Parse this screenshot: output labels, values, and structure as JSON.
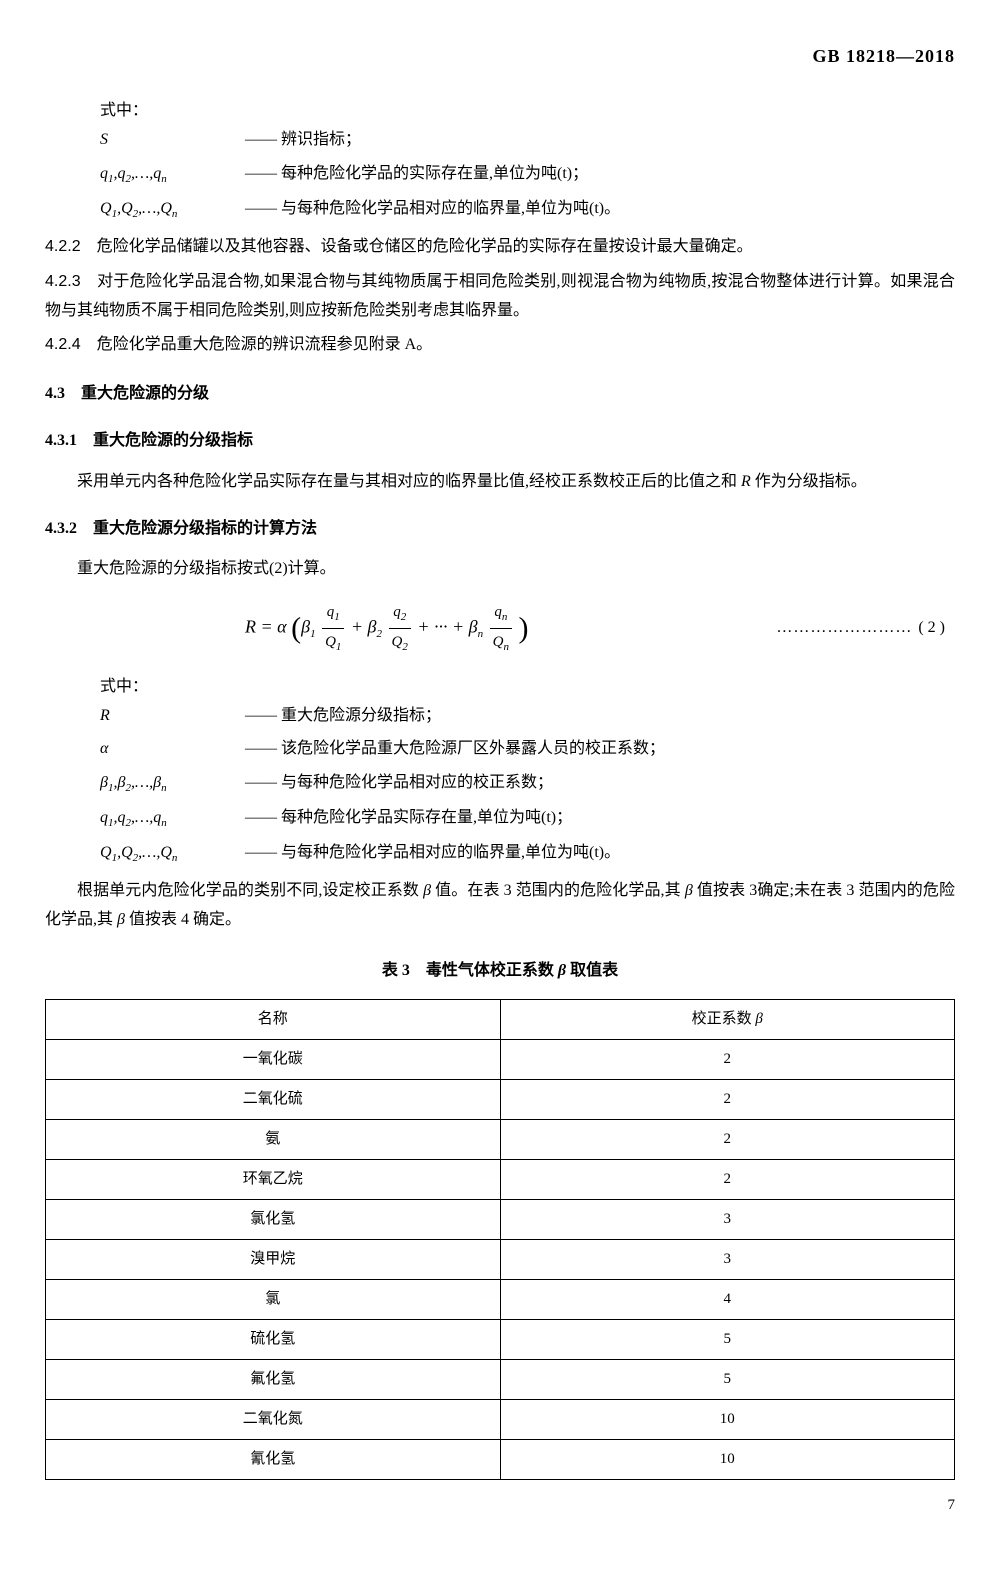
{
  "header": {
    "standard_id": "GB 18218—2018"
  },
  "defs1_intro": "式中：",
  "defs1": [
    {
      "sym": "S",
      "text": "辨识指标；"
    },
    {
      "sym": "q₁,q₂,…,qₙ",
      "text": "每种危险化学品的实际存在量,单位为吨(t)；"
    },
    {
      "sym": "Q₁,Q₂,…,Qₙ",
      "text": "与每种危险化学品相对应的临界量,单位为吨(t)。"
    }
  ],
  "clauses": {
    "c422": {
      "num": "4.2.2",
      "text": "危险化学品储罐以及其他容器、设备或仓储区的危险化学品的实际存在量按设计最大量确定。"
    },
    "c423": {
      "num": "4.2.3",
      "text": "对于危险化学品混合物,如果混合物与其纯物质属于相同危险类别,则视混合物为纯物质,按混合物整体进行计算。如果混合物与其纯物质不属于相同危险类别,则应按新危险类别考虑其临界量。"
    },
    "c424": {
      "num": "4.2.4",
      "text": "危险化学品重大危险源的辨识流程参见附录 A。"
    }
  },
  "sec43": {
    "num": "4.3",
    "title": "重大危险源的分级"
  },
  "sec431": {
    "num": "4.3.1",
    "title": "重大危险源的分级指标",
    "para": "采用单元内各种危险化学品实际存在量与其相对应的临界量比值,经校正系数校正后的比值之和 R 作为分级指标。"
  },
  "sec432": {
    "num": "4.3.2",
    "title": "重大危险源分级指标的计算方法",
    "para": "重大危险源的分级指标按式(2)计算。"
  },
  "formula": {
    "lhs": "R = α",
    "terms_intro": "β",
    "eq_num": "( 2 )"
  },
  "defs2_intro": "式中：",
  "defs2": [
    {
      "sym": "R",
      "text": "重大危险源分级指标；"
    },
    {
      "sym": "α",
      "text": "该危险化学品重大危险源厂区外暴露人员的校正系数；"
    },
    {
      "sym": "β₁,β₂,…,βₙ",
      "text": "与每种危险化学品相对应的校正系数；"
    },
    {
      "sym": "q₁,q₂,…,qₙ",
      "text": "每种危险化学品实际存在量,单位为吨(t)；"
    },
    {
      "sym": "Q₁,Q₂,…,Qₙ",
      "text": "与每种危险化学品相对应的临界量,单位为吨(t)。"
    }
  ],
  "para_after": "根据单元内危险化学品的类别不同,设定校正系数 β 值。在表 3 范围内的危险化学品,其 β 值按表 3确定;未在表 3 范围内的危险化学品,其 β 值按表 4 确定。",
  "table3": {
    "title": "表 3　毒性气体校正系数 β 取值表",
    "columns": [
      "名称",
      "校正系数 β"
    ],
    "rows": [
      [
        "一氧化碳",
        "2"
      ],
      [
        "二氧化硫",
        "2"
      ],
      [
        "氨",
        "2"
      ],
      [
        "环氧乙烷",
        "2"
      ],
      [
        "氯化氢",
        "3"
      ],
      [
        "溴甲烷",
        "3"
      ],
      [
        "氯",
        "4"
      ],
      [
        "硫化氢",
        "5"
      ],
      [
        "氟化氢",
        "5"
      ],
      [
        "二氧化氮",
        "10"
      ],
      [
        "氰化氢",
        "10"
      ]
    ]
  },
  "page_num": "7"
}
